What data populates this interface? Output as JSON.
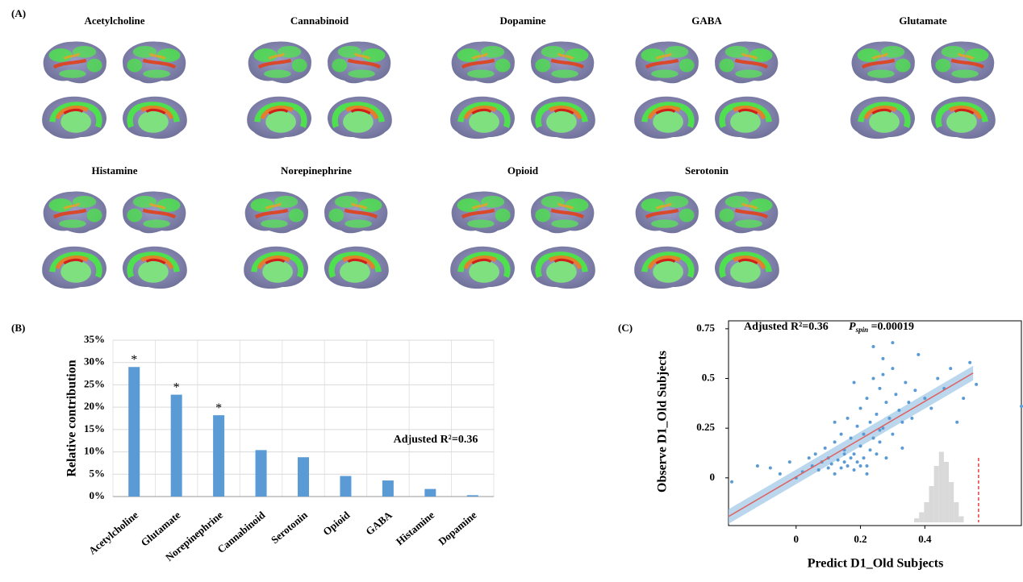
{
  "brain_maps": {
    "label": "(A)",
    "titles": [
      "Acetylcholine",
      "Cannabinoid",
      "Dopamine",
      "GABA",
      "Glutamate",
      "Histamine",
      "Norepinephrine",
      "Opioid",
      "Serotonin"
    ]
  },
  "chart_data": [
    {
      "type": "bar",
      "panel_label": "(B)",
      "ylabel": "Relative contribution",
      "categories": [
        "Acetylcholine",
        "Glutamate",
        "Norepinephrine",
        "Cannabinoid",
        "Serotonin",
        "Opioid",
        "GABA",
        "Histamine",
        "Dopamine"
      ],
      "values": [
        29,
        22.8,
        18.2,
        10.4,
        8.8,
        4.6,
        3.6,
        1.7,
        0.3
      ],
      "significance": [
        "*",
        "*",
        "*",
        null,
        null,
        null,
        null,
        null,
        null
      ],
      "color": "#5b9bd5",
      "ylim": [
        0,
        35
      ],
      "yticks": [
        {
          "value": 0,
          "label": "0%"
        },
        {
          "value": 5,
          "label": "5%"
        },
        {
          "value": 10,
          "label": "10%"
        },
        {
          "value": 15,
          "label": "15%"
        },
        {
          "value": 20,
          "label": "20%"
        },
        {
          "value": 25,
          "label": "25%"
        },
        {
          "value": 30,
          "label": "30%"
        },
        {
          "value": 35,
          "label": "35%"
        }
      ],
      "grid": true,
      "annotation": "Adjusted R²=0.36"
    },
    {
      "type": "scatter",
      "panel_label": "(C)",
      "xlabel": "Predict  D1_Old Subjects",
      "ylabel": "Observe D1_Old Subjects",
      "annotation": "Adjusted R²=0.36",
      "p_symbol": "P",
      "p_subscript": "spin",
      "p_text": " =0.00019",
      "color": "#5b9bd5",
      "x": [
        -0.2,
        -0.12,
        -0.08,
        -0.05,
        -0.02,
        0.0,
        0.02,
        0.04,
        0.05,
        0.06,
        0.07,
        0.08,
        0.09,
        0.1,
        0.1,
        0.11,
        0.12,
        0.12,
        0.13,
        0.14,
        0.14,
        0.15,
        0.15,
        0.16,
        0.16,
        0.17,
        0.17,
        0.18,
        0.18,
        0.19,
        0.19,
        0.2,
        0.2,
        0.21,
        0.21,
        0.22,
        0.22,
        0.23,
        0.23,
        0.24,
        0.24,
        0.25,
        0.25,
        0.26,
        0.26,
        0.27,
        0.27,
        0.28,
        0.28,
        0.29,
        0.3,
        0.3,
        0.31,
        0.32,
        0.33,
        0.34,
        0.35,
        0.36,
        0.37,
        0.38,
        0.4,
        0.42,
        0.44,
        0.46,
        0.48,
        0.5,
        0.52,
        0.54,
        0.56,
        0.7,
        0.24,
        0.27,
        0.3,
        0.22,
        0.33,
        0.18,
        0.15,
        0.12,
        0.2,
        0.26
      ],
      "y": [
        -0.02,
        0.06,
        0.05,
        0.02,
        0.08,
        0.0,
        0.03,
        0.1,
        0.06,
        0.12,
        0.04,
        0.08,
        0.15,
        0.05,
        0.1,
        0.07,
        0.02,
        0.18,
        0.09,
        0.05,
        0.22,
        0.08,
        0.14,
        0.06,
        0.3,
        0.1,
        0.2,
        0.04,
        0.12,
        0.26,
        0.08,
        0.16,
        0.35,
        0.1,
        0.22,
        0.06,
        0.4,
        0.14,
        0.28,
        0.2,
        0.5,
        0.12,
        0.32,
        0.45,
        0.18,
        0.25,
        0.6,
        0.38,
        0.1,
        0.3,
        0.22,
        0.55,
        0.42,
        0.34,
        0.28,
        0.48,
        0.38,
        0.3,
        0.44,
        0.62,
        0.4,
        0.35,
        0.5,
        0.45,
        0.55,
        0.28,
        0.4,
        0.58,
        0.47,
        0.36,
        0.66,
        0.52,
        0.68,
        0.02,
        0.15,
        0.48,
        0.12,
        0.28,
        0.06,
        0.24
      ],
      "fit": {
        "slope": 0.95,
        "intercept": 0.005,
        "x_range": [
          -0.21,
          0.55
        ],
        "color": "#e06060",
        "band_color": "#a9cde8"
      },
      "xlim": [
        -0.21,
        0.7
      ],
      "xticks": [
        0,
        0.2,
        0.4
      ],
      "ylim": [
        -0.24,
        0.79
      ],
      "yticks": [
        0,
        0.25,
        0.5,
        0.75
      ]
    },
    {
      "type": "histogram",
      "color": "#d9d9d9",
      "bins": [
        0.1,
        0.12,
        0.14,
        0.16,
        0.18,
        0.2,
        0.22,
        0.24,
        0.26,
        0.28,
        0.3
      ],
      "counts": [
        2,
        5,
        10,
        18,
        28,
        35,
        30,
        20,
        10,
        3
      ],
      "observed": 0.36,
      "observed_color": "#e02020",
      "xlim": [
        0.09,
        0.37
      ],
      "ylim": [
        0,
        40
      ]
    }
  ]
}
